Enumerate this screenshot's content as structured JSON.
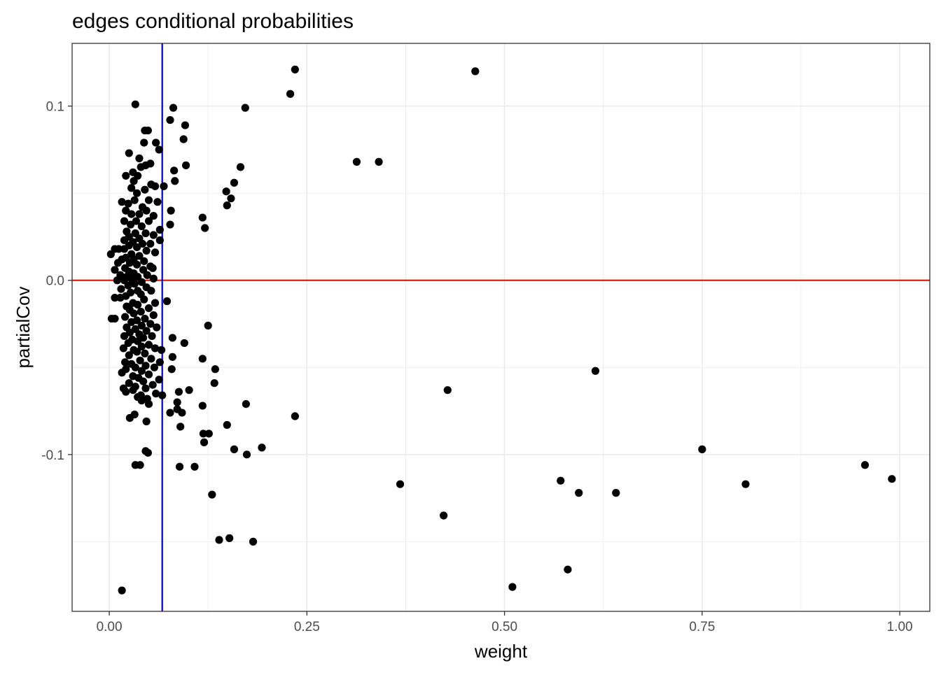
{
  "chart_data": {
    "type": "scatter",
    "title": "edges conditional probabilities",
    "xlabel": "weight",
    "ylabel": "partialCov",
    "xlim": [
      -0.047,
      1.038
    ],
    "ylim": [
      -0.19,
      0.136
    ],
    "x_ticks": [
      0.0,
      0.25,
      0.5,
      0.75,
      1.0
    ],
    "x_tick_labels": [
      "0.00",
      "0.25",
      "0.50",
      "0.75",
      "1.00"
    ],
    "y_ticks": [
      -0.1,
      0.0,
      0.1
    ],
    "y_tick_labels": [
      "-0.1",
      "0.0",
      "0.1"
    ],
    "grid": true,
    "hline": {
      "y": 0.0,
      "color": "#e31a1c"
    },
    "vline": {
      "x": 0.067,
      "color": "#0000cc"
    },
    "point_color": "#000000",
    "points": [
      [
        0.235,
        0.121
      ],
      [
        0.463,
        0.12
      ],
      [
        0.229,
        0.107
      ],
      [
        0.033,
        0.101
      ],
      [
        0.081,
        0.099
      ],
      [
        0.172,
        0.099
      ],
      [
        0.077,
        0.092
      ],
      [
        0.096,
        0.089
      ],
      [
        0.045,
        0.086
      ],
      [
        0.049,
        0.086
      ],
      [
        0.094,
        0.081
      ],
      [
        0.059,
        0.079
      ],
      [
        0.044,
        0.079
      ],
      [
        0.063,
        0.075
      ],
      [
        0.025,
        0.073
      ],
      [
        0.038,
        0.07
      ],
      [
        0.313,
        0.068
      ],
      [
        0.341,
        0.068
      ],
      [
        0.052,
        0.067
      ],
      [
        0.097,
        0.066
      ],
      [
        0.046,
        0.066
      ],
      [
        0.04,
        0.065
      ],
      [
        0.166,
        0.065
      ],
      [
        0.082,
        0.063
      ],
      [
        0.03,
        0.062
      ],
      [
        0.021,
        0.06
      ],
      [
        0.036,
        0.06
      ],
      [
        0.083,
        0.057
      ],
      [
        0.031,
        0.057
      ],
      [
        0.158,
        0.056
      ],
      [
        0.053,
        0.055
      ],
      [
        0.058,
        0.054
      ],
      [
        0.069,
        0.054
      ],
      [
        0.028,
        0.053
      ],
      [
        0.045,
        0.052
      ],
      [
        0.148,
        0.051
      ],
      [
        0.035,
        0.05
      ],
      [
        0.154,
        0.047
      ],
      [
        0.05,
        0.046
      ],
      [
        0.032,
        0.046
      ],
      [
        0.061,
        0.045
      ],
      [
        0.016,
        0.045
      ],
      [
        0.024,
        0.044
      ],
      [
        0.149,
        0.043
      ],
      [
        0.042,
        0.042
      ],
      [
        0.078,
        0.04
      ],
      [
        0.021,
        0.04
      ],
      [
        0.047,
        0.04
      ],
      [
        0.028,
        0.038
      ],
      [
        0.038,
        0.038
      ],
      [
        0.056,
        0.037
      ],
      [
        0.118,
        0.036
      ],
      [
        0.019,
        0.034
      ],
      [
        0.034,
        0.034
      ],
      [
        0.05,
        0.034
      ],
      [
        0.027,
        0.032
      ],
      [
        0.077,
        0.032
      ],
      [
        0.041,
        0.031
      ],
      [
        0.121,
        0.03
      ],
      [
        0.064,
        0.029
      ],
      [
        0.022,
        0.028
      ],
      [
        0.033,
        0.027
      ],
      [
        0.046,
        0.027
      ],
      [
        0.056,
        0.026
      ],
      [
        0.025,
        0.025
      ],
      [
        0.038,
        0.024
      ],
      [
        0.019,
        0.023
      ],
      [
        0.064,
        0.023
      ],
      [
        0.03,
        0.022
      ],
      [
        0.042,
        0.021
      ],
      [
        0.052,
        0.021
      ],
      [
        0.025,
        0.02
      ],
      [
        0.035,
        0.019
      ],
      [
        0.019,
        0.018
      ],
      [
        0.007,
        0.018
      ],
      [
        0.012,
        0.018
      ],
      [
        0.047,
        0.017
      ],
      [
        0.058,
        0.016
      ],
      [
        0.002,
        0.015
      ],
      [
        0.028,
        0.015
      ],
      [
        0.038,
        0.014
      ],
      [
        0.021,
        0.013
      ],
      [
        0.016,
        0.012
      ],
      [
        0.031,
        0.012
      ],
      [
        0.044,
        0.011
      ],
      [
        0.026,
        0.01
      ],
      [
        0.011,
        0.01
      ],
      [
        0.035,
        0.009
      ],
      [
        0.052,
        0.008
      ],
      [
        0.055,
        0.007
      ],
      [
        0.02,
        0.007
      ],
      [
        0.007,
        0.006
      ],
      [
        0.043,
        0.006
      ],
      [
        0.025,
        0.005
      ],
      [
        0.031,
        0.004
      ],
      [
        0.014,
        0.003
      ],
      [
        0.048,
        0.003
      ],
      [
        0.036,
        0.002
      ],
      [
        0.022,
        0.002
      ],
      [
        0.028,
        0.001
      ],
      [
        0.056,
        0.001
      ],
      [
        0.01,
        0.0
      ],
      [
        0.019,
        0.0
      ],
      [
        0.041,
        -0.001
      ],
      [
        0.032,
        -0.002
      ],
      [
        0.024,
        -0.003
      ],
      [
        0.047,
        -0.004
      ],
      [
        0.015,
        -0.005
      ],
      [
        0.036,
        -0.006
      ],
      [
        0.053,
        -0.006
      ],
      [
        0.027,
        -0.007
      ],
      [
        0.04,
        -0.008
      ],
      [
        0.021,
        -0.009
      ],
      [
        0.007,
        -0.01
      ],
      [
        0.014,
        -0.01
      ],
      [
        0.044,
        -0.011
      ],
      [
        0.073,
        -0.012
      ],
      [
        0.03,
        -0.013
      ],
      [
        0.058,
        -0.013
      ],
      [
        0.036,
        -0.014
      ],
      [
        0.022,
        -0.015
      ],
      [
        0.05,
        -0.016
      ],
      [
        0.026,
        -0.017
      ],
      [
        0.04,
        -0.018
      ],
      [
        0.031,
        -0.019
      ],
      [
        0.056,
        -0.02
      ],
      [
        0.02,
        -0.021
      ],
      [
        0.045,
        -0.022
      ],
      [
        0.003,
        -0.022
      ],
      [
        0.007,
        -0.022
      ],
      [
        0.035,
        -0.023
      ],
      [
        0.028,
        -0.024
      ],
      [
        0.052,
        -0.025
      ],
      [
        0.041,
        -0.026
      ],
      [
        0.125,
        -0.026
      ],
      [
        0.022,
        -0.027
      ],
      [
        0.06,
        -0.027
      ],
      [
        0.033,
        -0.028
      ],
      [
        0.047,
        -0.029
      ],
      [
        0.026,
        -0.03
      ],
      [
        0.038,
        -0.031
      ],
      [
        0.019,
        -0.032
      ],
      [
        0.054,
        -0.032
      ],
      [
        0.08,
        -0.033
      ],
      [
        0.043,
        -0.033
      ],
      [
        0.029,
        -0.034
      ],
      [
        0.036,
        -0.035
      ],
      [
        0.095,
        -0.036
      ],
      [
        0.024,
        -0.036
      ],
      [
        0.05,
        -0.037
      ],
      [
        0.041,
        -0.038
      ],
      [
        0.018,
        -0.039
      ],
      [
        0.058,
        -0.039
      ],
      [
        0.031,
        -0.04
      ],
      [
        0.066,
        -0.04
      ],
      [
        0.035,
        -0.041
      ],
      [
        0.045,
        -0.042
      ],
      [
        0.025,
        -0.043
      ],
      [
        0.08,
        -0.044
      ],
      [
        0.118,
        -0.045
      ],
      [
        0.053,
        -0.045
      ],
      [
        0.039,
        -0.046
      ],
      [
        0.02,
        -0.047
      ],
      [
        0.064,
        -0.047
      ],
      [
        0.028,
        -0.048
      ],
      [
        0.046,
        -0.049
      ],
      [
        0.033,
        -0.05
      ],
      [
        0.057,
        -0.05
      ],
      [
        0.021,
        -0.051
      ],
      [
        0.079,
        -0.051
      ],
      [
        0.134,
        -0.051
      ],
      [
        0.041,
        -0.052
      ],
      [
        0.615,
        -0.052
      ],
      [
        0.016,
        -0.053
      ],
      [
        0.05,
        -0.054
      ],
      [
        0.03,
        -0.055
      ],
      [
        0.037,
        -0.056
      ],
      [
        0.063,
        -0.057
      ],
      [
        0.043,
        -0.058
      ],
      [
        0.025,
        -0.059
      ],
      [
        0.133,
        -0.059
      ],
      [
        0.055,
        -0.06
      ],
      [
        0.033,
        -0.061
      ],
      [
        0.018,
        -0.062
      ],
      [
        0.046,
        -0.062
      ],
      [
        0.03,
        -0.063
      ],
      [
        0.101,
        -0.063
      ],
      [
        0.088,
        -0.064
      ],
      [
        0.428,
        -0.063
      ],
      [
        0.021,
        -0.064
      ],
      [
        0.059,
        -0.065
      ],
      [
        0.04,
        -0.066
      ],
      [
        0.067,
        -0.066
      ],
      [
        0.036,
        -0.067
      ],
      [
        0.048,
        -0.068
      ],
      [
        0.041,
        -0.069
      ],
      [
        0.086,
        -0.07
      ],
      [
        0.05,
        -0.071
      ],
      [
        0.173,
        -0.071
      ],
      [
        0.118,
        -0.072
      ],
      [
        0.086,
        -0.074
      ],
      [
        0.077,
        -0.076
      ],
      [
        0.092,
        -0.076
      ],
      [
        0.032,
        -0.077
      ],
      [
        0.235,
        -0.078
      ],
      [
        0.026,
        -0.079
      ],
      [
        0.047,
        -0.081
      ],
      [
        0.149,
        -0.083
      ],
      [
        0.09,
        -0.084
      ],
      [
        0.119,
        -0.088
      ],
      [
        0.126,
        -0.088
      ],
      [
        0.12,
        -0.093
      ],
      [
        0.193,
        -0.096
      ],
      [
        0.158,
        -0.097
      ],
      [
        0.75,
        -0.097
      ],
      [
        0.046,
        -0.098
      ],
      [
        0.049,
        -0.099
      ],
      [
        0.174,
        -0.1
      ],
      [
        0.956,
        -0.106
      ],
      [
        0.033,
        -0.106
      ],
      [
        0.039,
        -0.106
      ],
      [
        0.089,
        -0.107
      ],
      [
        0.108,
        -0.107
      ],
      [
        0.571,
        -0.115
      ],
      [
        0.99,
        -0.114
      ],
      [
        0.368,
        -0.117
      ],
      [
        0.805,
        -0.117
      ],
      [
        0.594,
        -0.122
      ],
      [
        0.641,
        -0.122
      ],
      [
        0.13,
        -0.123
      ],
      [
        0.423,
        -0.135
      ],
      [
        0.139,
        -0.149
      ],
      [
        0.152,
        -0.148
      ],
      [
        0.182,
        -0.15
      ],
      [
        0.58,
        -0.166
      ],
      [
        0.51,
        -0.176
      ],
      [
        0.016,
        -0.178
      ]
    ]
  }
}
